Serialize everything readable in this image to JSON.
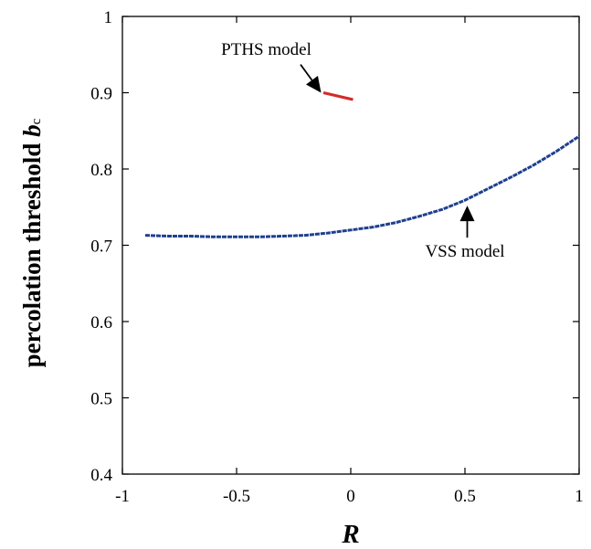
{
  "chart_data": {
    "type": "line",
    "title": "",
    "xlabel": "R",
    "ylabel_text": "percolation threshold ",
    "ylabel_symbol": "b",
    "ylabel_subscript": "c",
    "xlim": [
      -1,
      1
    ],
    "ylim": [
      0.4,
      1
    ],
    "xticks": [
      -1,
      -0.5,
      0,
      0.5,
      1
    ],
    "xtick_labels": [
      "-1",
      "-0.5",
      "0",
      "0.5",
      "1"
    ],
    "yticks": [
      0.4,
      0.5,
      0.6,
      0.7,
      0.8,
      0.9,
      1
    ],
    "ytick_labels": [
      "0.4",
      "0.5",
      "0.6",
      "0.7",
      "0.8",
      "0.9",
      "1"
    ],
    "grid": false,
    "series": [
      {
        "color": "#1f3f8f",
        "x": [
          -0.9,
          -0.8,
          -0.7,
          -0.6,
          -0.5,
          -0.4,
          -0.3,
          -0.2,
          -0.1,
          0.0,
          0.1,
          0.2,
          0.3,
          0.4,
          0.5,
          0.6,
          0.7,
          0.8,
          0.9,
          1.0
        ],
        "y": [
          0.713,
          0.712,
          0.712,
          0.711,
          0.711,
          0.711,
          0.712,
          0.713,
          0.716,
          0.72,
          0.724,
          0.73,
          0.738,
          0.747,
          0.759,
          0.774,
          0.789,
          0.805,
          0.823,
          0.843
        ]
      },
      {
        "color": "#d42a2a",
        "x": [
          -0.12,
          0.01
        ],
        "y": [
          0.9,
          0.891
        ]
      }
    ],
    "annotations": [
      {
        "text": "PTHS model",
        "text_x": -0.37,
        "text_y": 0.95,
        "arrow_from": [
          -0.22,
          0.937
        ],
        "arrow_to": [
          -0.13,
          0.9
        ]
      },
      {
        "text": "VSS model",
        "text_x": 0.5,
        "text_y": 0.685,
        "arrow_from": [
          0.51,
          0.71
        ],
        "arrow_to": [
          0.51,
          0.752
        ]
      }
    ]
  }
}
